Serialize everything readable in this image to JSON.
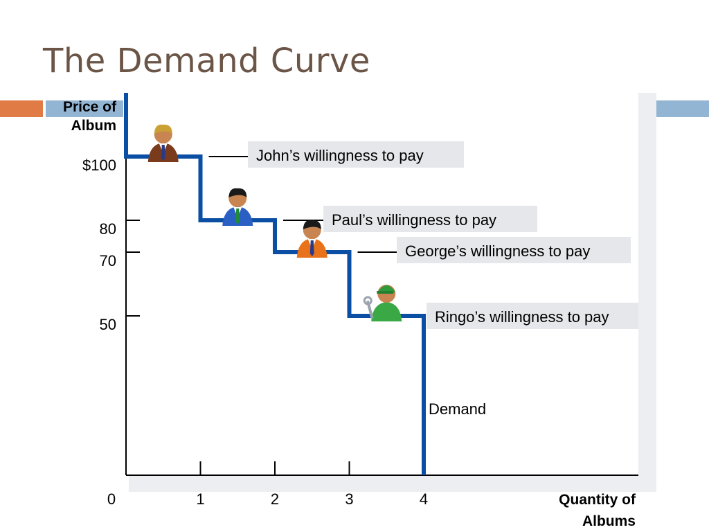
{
  "slide": {
    "title": "The Demand Curve"
  },
  "chart_data": {
    "type": "line",
    "step": true,
    "title": "",
    "xlabel": "Quantity of Albums",
    "ylabel": "Price of Album",
    "xlim": [
      0,
      7
    ],
    "ylim": [
      0,
      120
    ],
    "x_ticks": [
      0,
      1,
      2,
      3,
      4
    ],
    "x_tick_labels": [
      "0",
      "1",
      "2",
      "3",
      "4"
    ],
    "y_ticks": [
      100,
      80,
      70,
      50
    ],
    "y_tick_labels": [
      "$100",
      "80",
      "70",
      "50"
    ],
    "series": [
      {
        "name": "Demand",
        "color": "#0a4fa3",
        "points": [
          [
            0,
            120
          ],
          [
            0,
            100
          ],
          [
            1,
            100
          ],
          [
            1,
            80
          ],
          [
            2,
            80
          ],
          [
            2,
            70
          ],
          [
            3,
            70
          ],
          [
            3,
            50
          ],
          [
            4,
            50
          ],
          [
            4,
            0
          ]
        ]
      }
    ],
    "buyers": [
      {
        "label": "John’s willingness to pay",
        "price": 100,
        "quantity": 1,
        "icon": "businessman-brown-suit-icon"
      },
      {
        "label": "Paul’s willingness to pay",
        "price": 80,
        "quantity": 2,
        "icon": "businessman-blue-suit-icon"
      },
      {
        "label": "George’s willingness to pay",
        "price": 70,
        "quantity": 3,
        "icon": "businessman-orange-suit-icon"
      },
      {
        "label": "Ringo’s willingness to pay",
        "price": 50,
        "quantity": 4,
        "icon": "mechanic-green-icon"
      }
    ],
    "curve_label": "Demand",
    "grid": false,
    "colors": {
      "curve": "#0a4fa3",
      "accent_orange": "#e07b45",
      "accent_blue": "#93b5d4",
      "title": "#6b5547"
    }
  }
}
